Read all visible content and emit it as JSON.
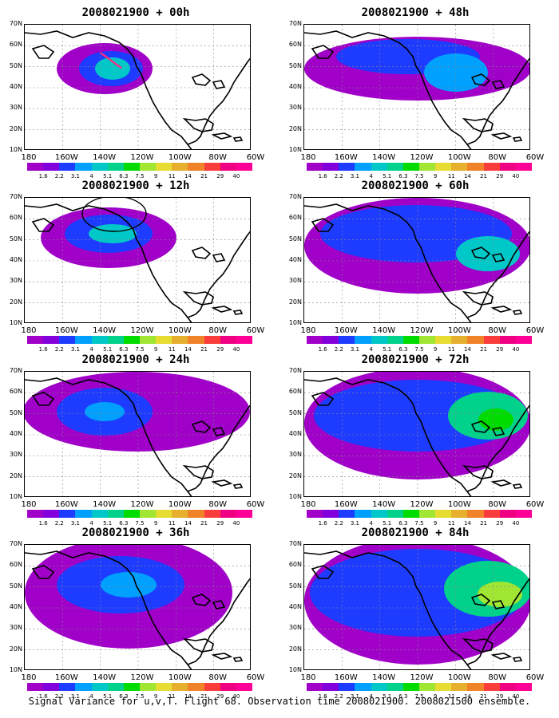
{
  "panels": [
    {
      "title": "2008021900 + 00h"
    },
    {
      "title": "2008021900 + 48h"
    },
    {
      "title": "2008021900 + 12h"
    },
    {
      "title": "2008021900 + 60h"
    },
    {
      "title": "2008021900 + 24h"
    },
    {
      "title": "2008021900 + 72h"
    },
    {
      "title": "2008021900 + 36h"
    },
    {
      "title": "2008021900 + 84h"
    }
  ],
  "lat_labels": [
    "70N",
    "60N",
    "50N",
    "40N",
    "30N",
    "20N",
    "10N"
  ],
  "lon_labels": [
    "180",
    "160W",
    "140W",
    "120W",
    "100W",
    "80W",
    "60W"
  ],
  "legend": {
    "values": [
      "1.6",
      "2.2",
      "3.1",
      "4",
      "5.1",
      "6.3",
      "7.5",
      "9",
      "11",
      "14",
      "21",
      "29",
      "40"
    ],
    "colors": [
      "#a000c8",
      "#8200dc",
      "#1e3cff",
      "#00a0ff",
      "#00c8c8",
      "#00d28c",
      "#00dc00",
      "#a0e632",
      "#e6dc32",
      "#e6af2d",
      "#f08228",
      "#fa3c3c",
      "#f00082",
      "#ff0096"
    ]
  },
  "caption": "Signal Variance for u,v,T. Flight 68. Observation time 2008021900. 2008021500 ensemble."
}
